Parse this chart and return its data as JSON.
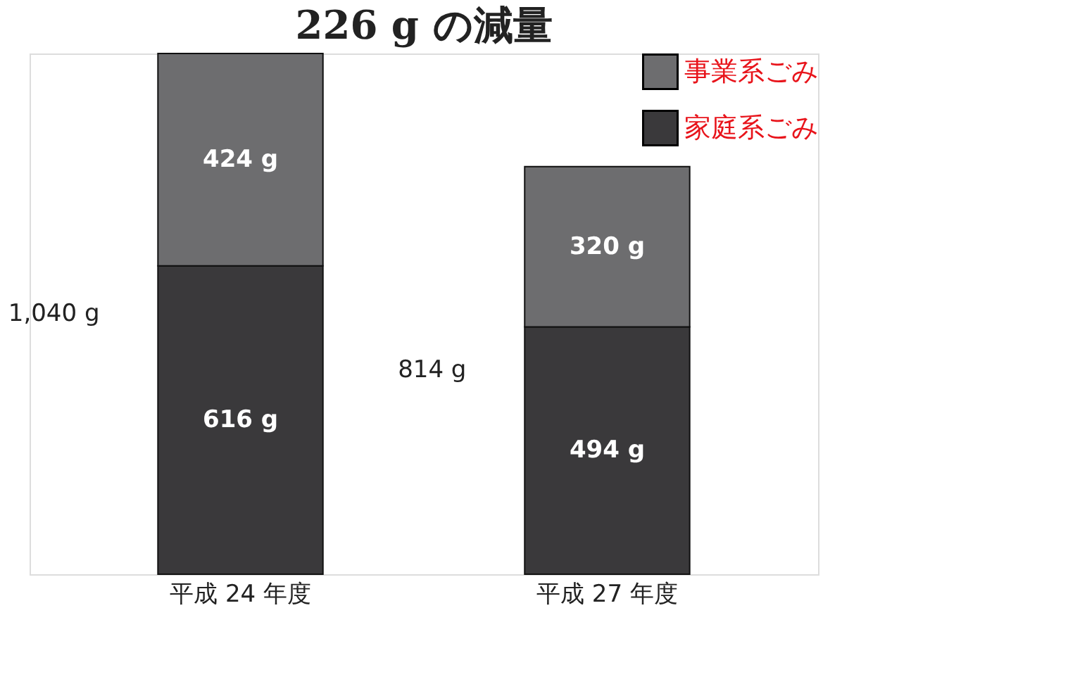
{
  "chart_data": {
    "type": "bar",
    "title": "226 g の減量",
    "categories": [
      "平成 24 年度",
      "平成 27 年度"
    ],
    "stacked": true,
    "series": [
      {
        "name": "家庭系ごみ",
        "color": "#3a393b",
        "values": [
          616,
          494
        ],
        "value_labels": [
          "616 g",
          "494 g"
        ]
      },
      {
        "name": "事業系ごみ",
        "color": "#6d6d6f",
        "values": [
          424,
          320
        ],
        "value_labels": [
          "424 g",
          "320 g"
        ]
      }
    ],
    "totals": [
      "1,040 g",
      "814 g"
    ],
    "legend": "top right",
    "tick_labels": "x"
  }
}
